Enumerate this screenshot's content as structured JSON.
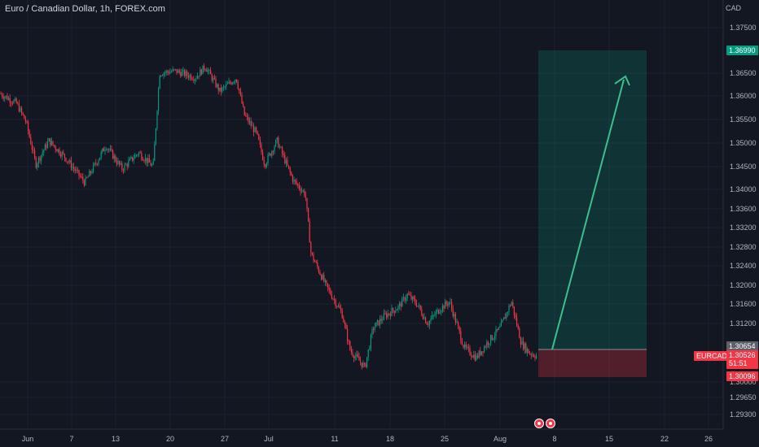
{
  "header": {
    "title": "Euro / Canadian Dollar, 1h, FOREX.com",
    "currency": "CAD"
  },
  "price_axis": {
    "ticks": [
      "1.37500",
      "1.36500",
      "1.36000",
      "1.35500",
      "1.35000",
      "1.34500",
      "1.34000",
      "1.33600",
      "1.33200",
      "1.32800",
      "1.32400",
      "1.32000",
      "1.31600",
      "1.31200",
      "1.30000",
      "1.29650",
      "1.29300"
    ]
  },
  "time_axis": {
    "ticks": [
      "Jun",
      "7",
      "13",
      "20",
      "27",
      "Jul",
      "11",
      "18",
      "25",
      "Aug",
      "8",
      "15",
      "22",
      "26"
    ]
  },
  "tags": {
    "target": "1.36990",
    "entry": "1.30654",
    "symbol": "EURCAD",
    "price": "1.30526",
    "countdown": "51:51",
    "stop": "1.30096"
  },
  "colors": {
    "background": "#131722",
    "up": "#089981",
    "down": "#f23645",
    "target_zone": "rgba(8,153,129,0.22)",
    "stop_zone": "rgba(242,54,69,0.28)",
    "arrow": "#3dbf8c"
  },
  "icons": {
    "events": [
      "event-flag-icon",
      "event-flag-icon"
    ]
  },
  "chart_data": {
    "type": "line",
    "title": "Euro / Canadian Dollar, 1h, FOREX.com",
    "symbol": "EURCAD",
    "x": [
      "Jun",
      "7",
      "13",
      "20",
      "27",
      "Jul",
      "11",
      "18",
      "25",
      "Aug"
    ],
    "y_unit": "CAD",
    "series": [
      {
        "name": "EURCAD",
        "values": [
          1.3595,
          1.3455,
          1.3445,
          1.3655,
          1.3665,
          1.3492,
          1.3115,
          1.3185,
          1.3128,
          1.314
        ]
      }
    ],
    "current_price": 1.30526,
    "position": {
      "direction": "long",
      "entry": 1.30654,
      "target": 1.3699,
      "stop": 1.30096
    }
  }
}
